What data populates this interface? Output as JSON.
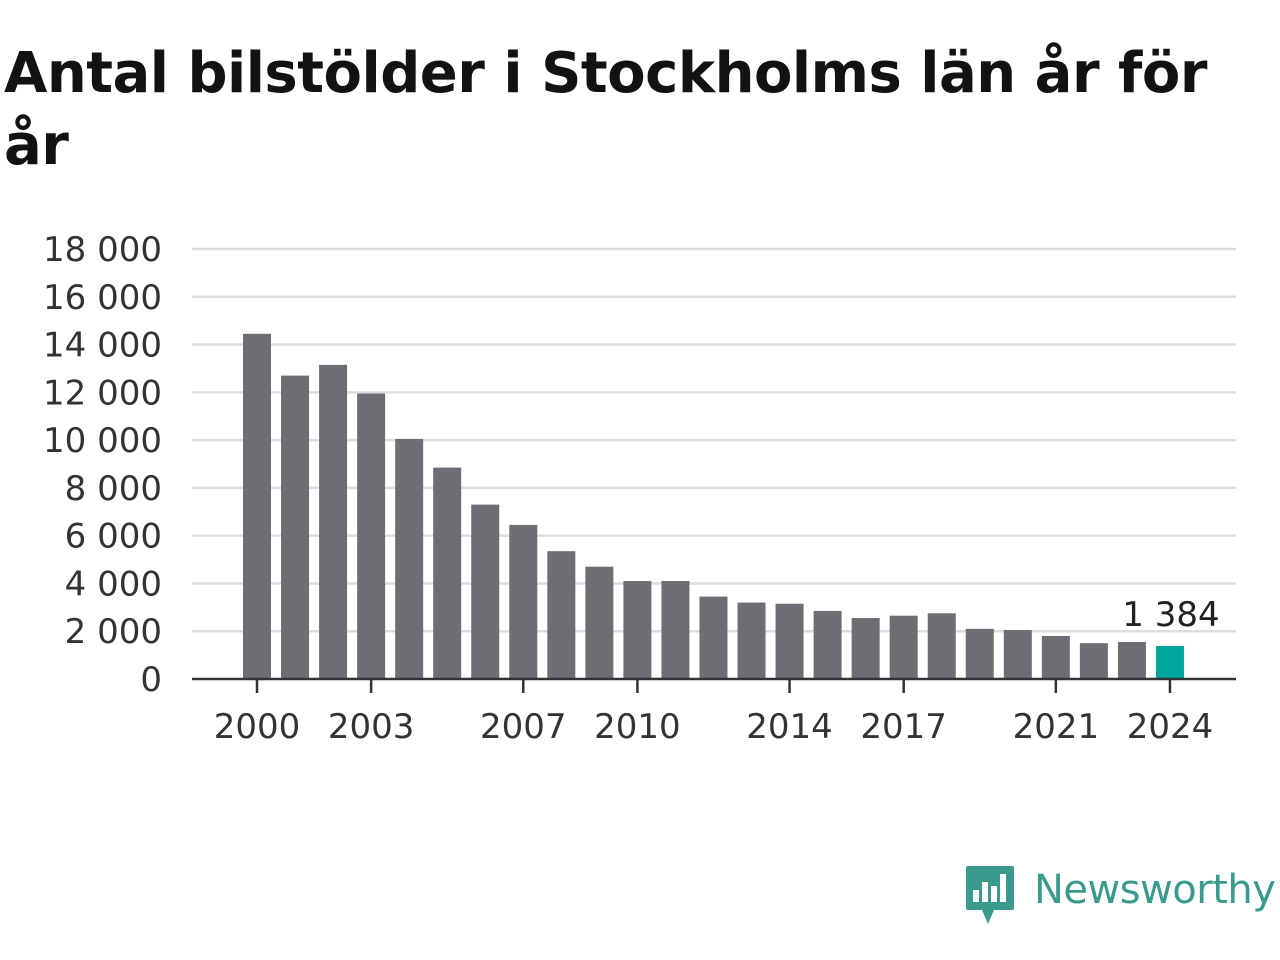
{
  "title": "Antal bilstölder i Stockholms län år för år",
  "brand": {
    "name": "Newsworthy",
    "color": "#3a9a8e",
    "icon": "newsworthy-logo-icon"
  },
  "colors": {
    "bar": "#6e6d73",
    "highlight": "#00a69c",
    "grid": "#dddddd",
    "axis": "#333333"
  },
  "chart_data": {
    "type": "bar",
    "title": "Antal bilstölder i Stockholms län år för år",
    "xlabel": "",
    "ylabel": "",
    "categories": [
      "2000",
      "2001",
      "2002",
      "2003",
      "2004",
      "2005",
      "2006",
      "2007",
      "2008",
      "2009",
      "2010",
      "2011",
      "2012",
      "2013",
      "2014",
      "2015",
      "2016",
      "2017",
      "2018",
      "2019",
      "2020",
      "2021",
      "2022",
      "2023",
      "2024"
    ],
    "values": [
      14450,
      12700,
      13150,
      11950,
      10050,
      8850,
      7300,
      6450,
      5350,
      4700,
      4100,
      4100,
      3450,
      3200,
      3150,
      2850,
      2550,
      2650,
      2750,
      2100,
      2050,
      1800,
      1500,
      1550,
      1384
    ],
    "x_tick_labels": [
      "2000",
      "2003",
      "2007",
      "2010",
      "2014",
      "2017",
      "2021",
      "2024"
    ],
    "y_ticks": [
      0,
      2000,
      4000,
      6000,
      8000,
      10000,
      12000,
      14000,
      16000,
      18000
    ],
    "y_tick_labels": [
      "0",
      "2 000",
      "4 000",
      "6 000",
      "8 000",
      "10 000",
      "12 000",
      "14 000",
      "16 000",
      "18 000"
    ],
    "ylim": [
      0,
      18000
    ],
    "grid": true,
    "highlight_category": "2024",
    "highlight_label": "1 384",
    "legend": "none"
  }
}
